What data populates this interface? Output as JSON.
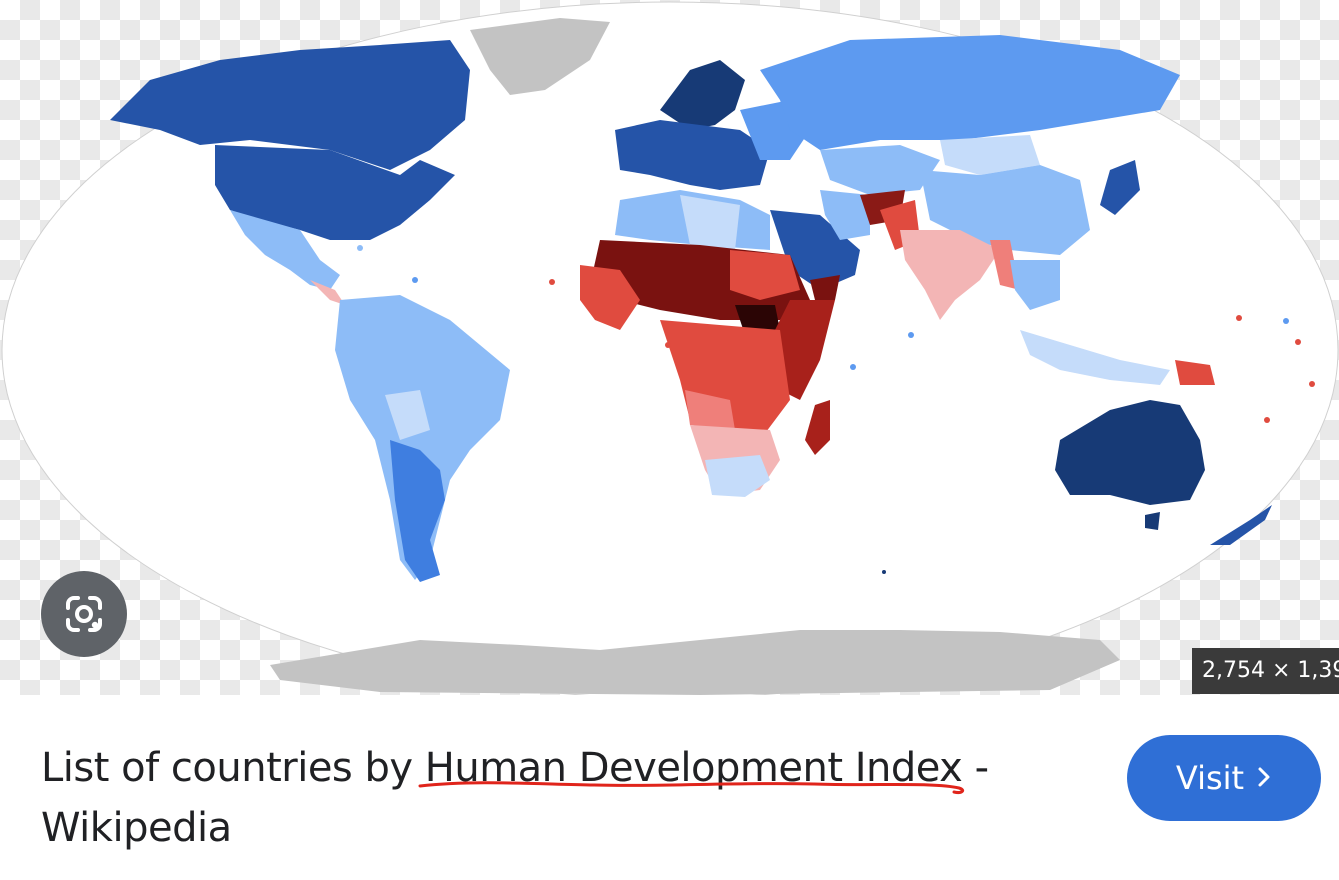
{
  "result": {
    "title_part1": "List of countries by ",
    "title_highlight": "Human Development Index",
    "title_part2": " - Wikipedia",
    "dimensions": "2,754 × 1,39",
    "visit_label": "Visit",
    "lens_icon": "google-lens-icon",
    "chevron_icon": "chevron-right-icon"
  },
  "colors": {
    "very_high_dark": "#173a76",
    "very_high": "#2554a8",
    "high": "#5d9af0",
    "medium_high": "#8dbcf7",
    "medium": "#c5dcfa",
    "low_light": "#f3b5b5",
    "low": "#e04b3f",
    "very_low": "#7a1210",
    "no_data": "#c3c3c3",
    "button": "#2f6fd6",
    "underline": "#e0241b"
  }
}
